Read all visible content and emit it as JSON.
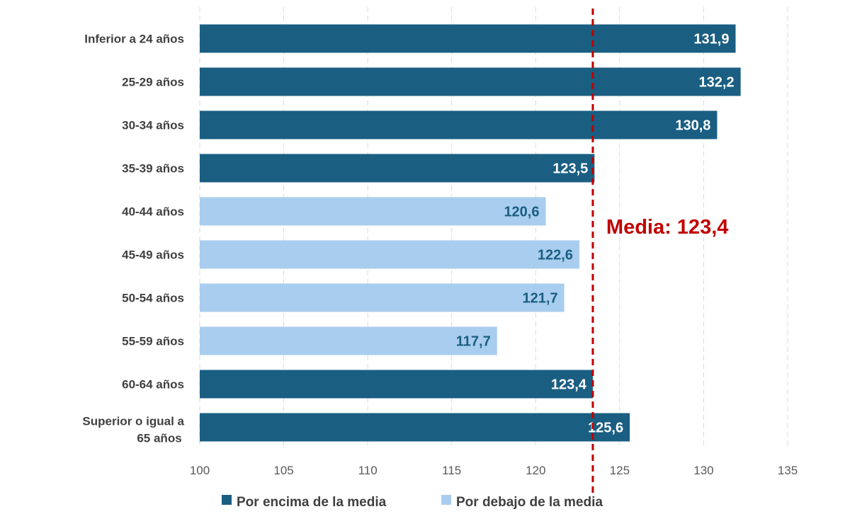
{
  "chart_data": {
    "type": "bar",
    "orientation": "horizontal",
    "title": "",
    "xlabel": "",
    "ylabel": "",
    "xlim": [
      100,
      135
    ],
    "x_ticks": [
      100,
      105,
      110,
      115,
      120,
      125,
      130,
      135
    ],
    "x_tick_labels": [
      "100",
      "105",
      "110",
      "115",
      "120",
      "125",
      "130",
      "135"
    ],
    "grid": "vertical dashed",
    "categories": [
      "Inferior a 24 años",
      "25-29 años",
      "30-34 años",
      "35-39 años",
      "40-44 años",
      "45-49 años",
      "50-54 años",
      "55-59 años",
      "60-64 años",
      "Superior o igual a 65 años"
    ],
    "values": [
      131.9,
      132.2,
      130.8,
      123.5,
      120.6,
      122.6,
      121.7,
      117.7,
      123.4,
      125.6
    ],
    "value_labels": [
      "131,9",
      "132,2",
      "130,8",
      "123,5",
      "120,6",
      "122,6",
      "121,7",
      "117,7",
      "123,4",
      "125,6"
    ],
    "series_membership": [
      "above",
      "above",
      "above",
      "above",
      "below",
      "below",
      "below",
      "below",
      "above",
      "above"
    ],
    "series": [
      {
        "key": "above",
        "name": "Por encima de la media",
        "color": "#1a5e82"
      },
      {
        "key": "below",
        "name": "Por debajo de la media",
        "color": "#a8cdee"
      }
    ],
    "reference_line": {
      "value": 123.4,
      "label": "Media: 123,4",
      "color": "#c00000",
      "style": "dashed"
    },
    "legend_position": "bottom"
  }
}
